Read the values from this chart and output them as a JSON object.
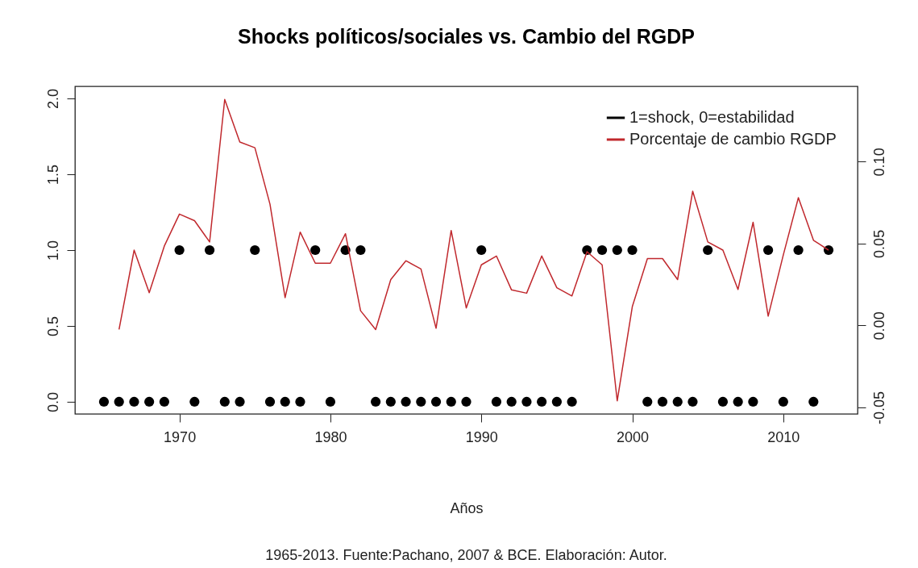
{
  "chart_data": {
    "type": "scatter",
    "title": "Shocks políticos/sociales vs. Cambio del RGDP",
    "xlabel": "Años",
    "annotations": [
      "1965-2013. Fuente:Pachano, 2007 & BCE. Elaboración: Autor."
    ],
    "xlim": [
      1963.08,
      2014.92
    ],
    "xticks": [
      1970,
      1980,
      1990,
      2000,
      2010
    ],
    "ylim": [
      -0.08,
      2.08
    ],
    "yticks": [
      {
        "value": 0,
        "label": "0.0"
      },
      0.5,
      {
        "value": 1,
        "label": "1.0"
      },
      1.5,
      {
        "value": 2,
        "label": "2.0"
      }
    ],
    "y2lim": [
      -0.054,
      0.146
    ],
    "y2ticks": [
      -0.05,
      {
        "value": 0,
        "label": "0.00"
      },
      0.05,
      {
        "value": 0.1,
        "label": "0.10"
      }
    ],
    "grid": false,
    "legend": "top right",
    "series": [
      {
        "name": "1=shock, 0=estabilidad",
        "color": "#000000",
        "marker": "circle",
        "x": [
          1965,
          1966,
          1967,
          1968,
          1969,
          1970,
          1971,
          1972,
          1973,
          1974,
          1975,
          1976,
          1977,
          1978,
          1979,
          1980,
          1981,
          1982,
          1983,
          1984,
          1985,
          1986,
          1987,
          1988,
          1989,
          1990,
          1991,
          1992,
          1993,
          1994,
          1995,
          1996,
          1997,
          1998,
          1999,
          2000,
          2001,
          2002,
          2003,
          2004,
          2005,
          2006,
          2007,
          2008,
          2009,
          2010,
          2011,
          2012,
          2013
        ],
        "values": [
          0,
          0,
          0,
          0,
          0,
          1,
          0,
          1,
          0,
          0,
          1,
          0,
          0,
          0,
          1,
          0,
          1,
          1,
          0,
          0,
          0,
          0,
          0,
          0,
          0,
          1,
          0,
          0,
          0,
          0,
          0,
          0,
          1,
          1,
          1,
          1,
          0,
          0,
          0,
          0,
          1,
          0,
          0,
          0,
          1,
          0,
          1,
          0,
          1
        ]
      },
      {
        "name": "Porcentaje de cambio RGDP",
        "color": "#c0282d",
        "type": "line",
        "axis": "y2",
        "line_style": "solid",
        "x": [
          1966,
          1967,
          1968,
          1969,
          1970,
          1971,
          1972,
          1973,
          1974,
          1975,
          1976,
          1977,
          1978,
          1979,
          1980,
          1981,
          1982,
          1983,
          1984,
          1985,
          1986,
          1987,
          1988,
          1989,
          1990,
          1991,
          1992,
          1993,
          1994,
          1995,
          1996,
          1997,
          1998,
          1999,
          2000,
          2001,
          2002,
          2003,
          2004,
          2005,
          2006,
          2007,
          2008,
          2009,
          2010,
          2011,
          2012,
          2013
        ],
        "values": [
          -0.0025,
          0.046,
          0.02,
          0.0485,
          0.068,
          0.064,
          0.051,
          0.138,
          0.112,
          0.1085,
          0.074,
          0.017,
          0.057,
          0.038,
          0.038,
          0.056,
          0.009,
          -0.0025,
          0.028,
          0.0395,
          0.0345,
          -0.0017,
          0.058,
          0.0107,
          0.037,
          0.0424,
          0.0217,
          0.0197,
          0.0424,
          0.023,
          0.018,
          0.045,
          0.037,
          -0.046,
          0.0115,
          0.0408,
          0.0408,
          0.028,
          0.082,
          0.051,
          0.046,
          0.022,
          0.063,
          0.0057,
          0.043,
          0.078,
          0.052,
          0.046
        ]
      }
    ]
  }
}
